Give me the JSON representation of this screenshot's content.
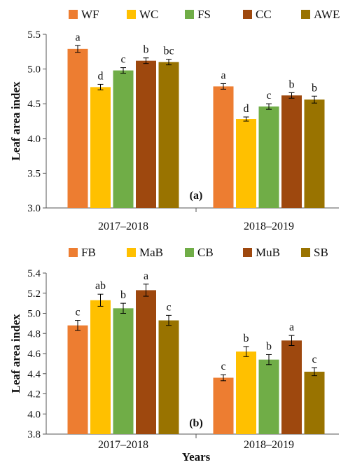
{
  "chart_data": [
    {
      "type": "bar",
      "panel_label": "(a)",
      "categories": [
        "2017–2018",
        "2018–2019"
      ],
      "series": [
        {
          "name": "WF",
          "color": "#ED7D31",
          "values": [
            5.29,
            4.75
          ],
          "errors": [
            0.05,
            0.04
          ],
          "letters": [
            "a",
            "a"
          ]
        },
        {
          "name": "WC",
          "color": "#FFC000",
          "values": [
            4.74,
            4.28
          ],
          "errors": [
            0.04,
            0.03
          ],
          "letters": [
            "d",
            "d"
          ]
        },
        {
          "name": "FS",
          "color": "#70AD47",
          "values": [
            4.98,
            4.46
          ],
          "errors": [
            0.04,
            0.04
          ],
          "letters": [
            "c",
            "c"
          ]
        },
        {
          "name": "CC",
          "color": "#9E480E",
          "values": [
            5.12,
            4.62
          ],
          "errors": [
            0.04,
            0.04
          ],
          "letters": [
            "b",
            "b"
          ]
        },
        {
          "name": "AWE",
          "color": "#997300",
          "values": [
            5.1,
            4.56
          ],
          "errors": [
            0.04,
            0.05
          ],
          "letters": [
            "bc",
            "b"
          ]
        }
      ],
      "ylabel": "Leaf area index",
      "xlabel": "",
      "ylim": [
        3.0,
        5.5
      ],
      "yticks": [
        "3.0",
        "3.5",
        "4.0",
        "4.5",
        "5.0",
        "5.5"
      ],
      "legend_placement": "top"
    },
    {
      "type": "bar",
      "panel_label": "(b)",
      "categories": [
        "2017–2018",
        "2018–2019"
      ],
      "series": [
        {
          "name": "FB",
          "color": "#ED7D31",
          "values": [
            4.88,
            4.36
          ],
          "errors": [
            0.05,
            0.03
          ],
          "letters": [
            "c",
            "c"
          ]
        },
        {
          "name": "MaB",
          "color": "#FFC000",
          "values": [
            5.13,
            4.62
          ],
          "errors": [
            0.06,
            0.05
          ],
          "letters": [
            "ab",
            "b"
          ]
        },
        {
          "name": "CB",
          "color": "#70AD47",
          "values": [
            5.05,
            4.54
          ],
          "errors": [
            0.05,
            0.05
          ],
          "letters": [
            "b",
            "b"
          ]
        },
        {
          "name": "MuB",
          "color": "#9E480E",
          "values": [
            5.23,
            4.73
          ],
          "errors": [
            0.06,
            0.05
          ],
          "letters": [
            "a",
            "a"
          ]
        },
        {
          "name": "SB",
          "color": "#997300",
          "values": [
            4.93,
            4.42
          ],
          "errors": [
            0.05,
            0.04
          ],
          "letters": [
            "c",
            "c"
          ]
        }
      ],
      "ylabel": "Leaf area index",
      "xlabel": "Years",
      "ylim": [
        3.8,
        5.4
      ],
      "yticks": [
        "3.8",
        "4.0",
        "4.2",
        "4.4",
        "4.6",
        "4.8",
        "5.0",
        "5.2",
        "5.4"
      ],
      "legend_placement": "top"
    }
  ]
}
